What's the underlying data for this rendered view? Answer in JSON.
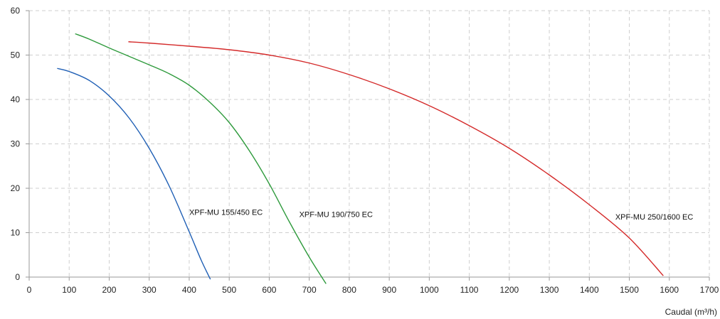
{
  "chart_data": {
    "type": "line",
    "title": "",
    "xlabel": "Caudal (m³/h)",
    "ylabel": "",
    "xlim": [
      0,
      1700
    ],
    "ylim": [
      0,
      60
    ],
    "xticks": [
      "0",
      "100",
      "200",
      "300",
      "400",
      "500",
      "600",
      "700",
      "800",
      "900",
      "1000",
      "1100",
      "1200",
      "1300",
      "1400",
      "1500",
      "1600",
      "1700"
    ],
    "yticks": [
      "0",
      "10",
      "20",
      "30",
      "40",
      "50",
      "60"
    ],
    "grid": true,
    "legend": "none",
    "series": [
      {
        "name": "XPF-MU 155/450 EC",
        "color": "#1f5fb5",
        "x": [
          70,
          100,
          150,
          200,
          250,
          300,
          350,
          400,
          430,
          453
        ],
        "y": [
          47,
          46.3,
          44.3,
          40.8,
          35.8,
          29.0,
          20.5,
          10.2,
          3.8,
          -0.5
        ]
      },
      {
        "name": "XPF-MU 190/750 EC",
        "color": "#2e9a3c",
        "x": [
          115,
          150,
          200,
          250,
          300,
          350,
          400,
          450,
          500,
          550,
          600,
          650,
          700,
          742
        ],
        "y": [
          54.8,
          53.6,
          51.6,
          49.7,
          47.8,
          45.8,
          43.2,
          39.5,
          34.8,
          28.5,
          21.0,
          12.5,
          4.5,
          -1.5
        ]
      },
      {
        "name": "XPF-MU 250/1600 EC",
        "color": "#d42a2a",
        "x": [
          248,
          300,
          400,
          500,
          600,
          700,
          800,
          900,
          1000,
          1100,
          1200,
          1300,
          1400,
          1500,
          1585
        ],
        "y": [
          53.0,
          52.7,
          52.0,
          51.2,
          50.0,
          48.2,
          45.6,
          42.4,
          38.6,
          34.1,
          29.0,
          23.0,
          16.3,
          8.8,
          0.3
        ]
      }
    ]
  },
  "annotations": [
    {
      "text": "XPF-MU 155/450 EC",
      "x": 400,
      "y": 14
    },
    {
      "text": "XPF-MU 190/750 EC",
      "x": 675,
      "y": 13.5
    },
    {
      "text": "XPF-MU 250/1600 EC",
      "x": 1465,
      "y": 13
    }
  ]
}
